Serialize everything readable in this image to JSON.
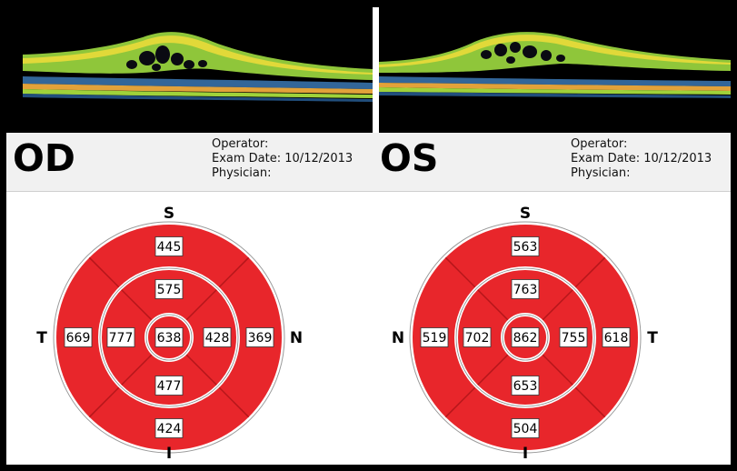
{
  "panels": [
    {
      "id": "od",
      "eye": "OD",
      "meta": {
        "operator_label": "Operator:",
        "operator_value": "",
        "exam_date_label": "Exam Date:",
        "exam_date_value": "10/12/2013",
        "physician_label": "Physician:",
        "physician_value": ""
      },
      "map": {
        "top_label": "S",
        "bottom_label": "I",
        "left_label": "T",
        "right_label": "N",
        "center": "638",
        "inner": {
          "superior": "575",
          "inferior": "477",
          "left": "777",
          "right": "428"
        },
        "outer": {
          "superior": "445",
          "inferior": "424",
          "left": "669",
          "right": "369"
        }
      }
    },
    {
      "id": "os",
      "eye": "OS",
      "meta": {
        "operator_label": "Operator:",
        "operator_value": "",
        "exam_date_label": "Exam Date:",
        "exam_date_value": "10/12/2013",
        "physician_label": "Physician:",
        "physician_value": ""
      },
      "map": {
        "top_label": "S",
        "bottom_label": "I",
        "left_label": "N",
        "right_label": "T",
        "center": "862",
        "inner": {
          "superior": "763",
          "inferior": "653",
          "left": "702",
          "right": "755"
        },
        "outer": {
          "superior": "563",
          "inferior": "504",
          "left": "519",
          "right": "618"
        }
      }
    }
  ],
  "colors": {
    "map_fill": "#e8262b",
    "ring_stroke": "#ffffff",
    "sector_line": "#b5161a",
    "scan_background": "#000000",
    "retina_green": "#9fd23a",
    "retina_yellow": "#f2e23a",
    "retina_rpe": "#e2a23a"
  }
}
